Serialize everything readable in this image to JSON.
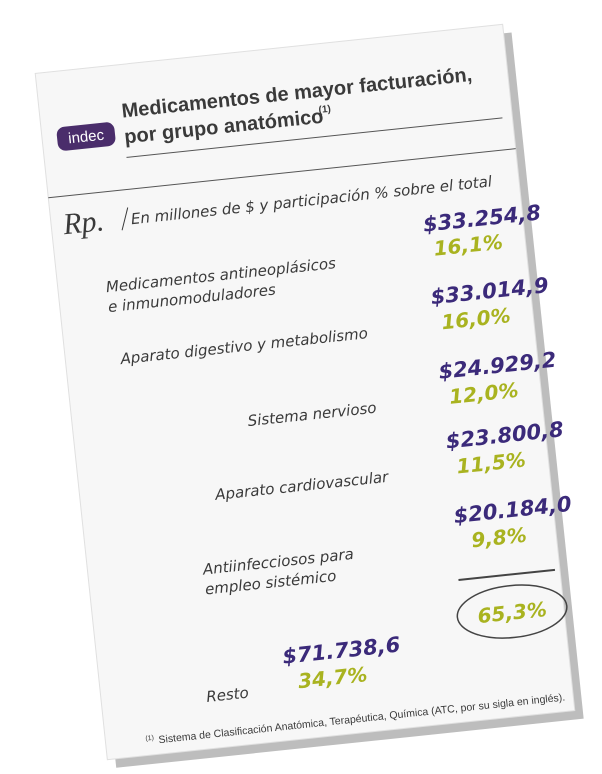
{
  "logo": "indec",
  "header": {
    "title_line1": "Medicamentos de mayor facturación,",
    "title_line2": "por grupo anatómico",
    "note_mark": "(1)"
  },
  "rx": "Rp.",
  "subtitle": "En millones de $ y participación % sobre el total",
  "items": [
    {
      "label": [
        "Medicamentos antineoplásicos",
        "e inmunomoduladores"
      ],
      "amount": "$33.254,8",
      "share": "16,1%"
    },
    {
      "label": [
        "Aparato digestivo y metabolismo"
      ],
      "amount": "$33.014,9",
      "share": "16,0%"
    },
    {
      "label": [
        "Sistema nervioso"
      ],
      "amount": "$24.929,2",
      "share": "12,0%"
    },
    {
      "label": [
        "Aparato cardiovascular"
      ],
      "amount": "$23.800,8",
      "share": "11,5%"
    },
    {
      "label": [
        "Antiinfecciosos para",
        "empleo sistémico"
      ],
      "amount": "$20.184,0",
      "share": "9,8%"
    }
  ],
  "top_total": "65,3%",
  "rest": {
    "label": "Resto",
    "amount": "$71.738,6",
    "share": "34,7%"
  },
  "footnote": {
    "mark": "(1)",
    "text": "Sistema de Clasificación Anatómica, Terapéutica, Química (ATC, por su sigla en inglés)."
  }
}
